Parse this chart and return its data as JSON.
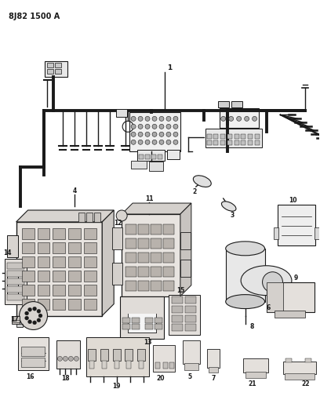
{
  "title": "8J82 1500 A",
  "bg": "#ffffff",
  "lc": "#1a1a1a",
  "fig_w": 4.08,
  "fig_h": 5.33,
  "dpi": 100,
  "wire_lw": 2.8,
  "thin_lw": 1.0,
  "label_fs": 5.5
}
